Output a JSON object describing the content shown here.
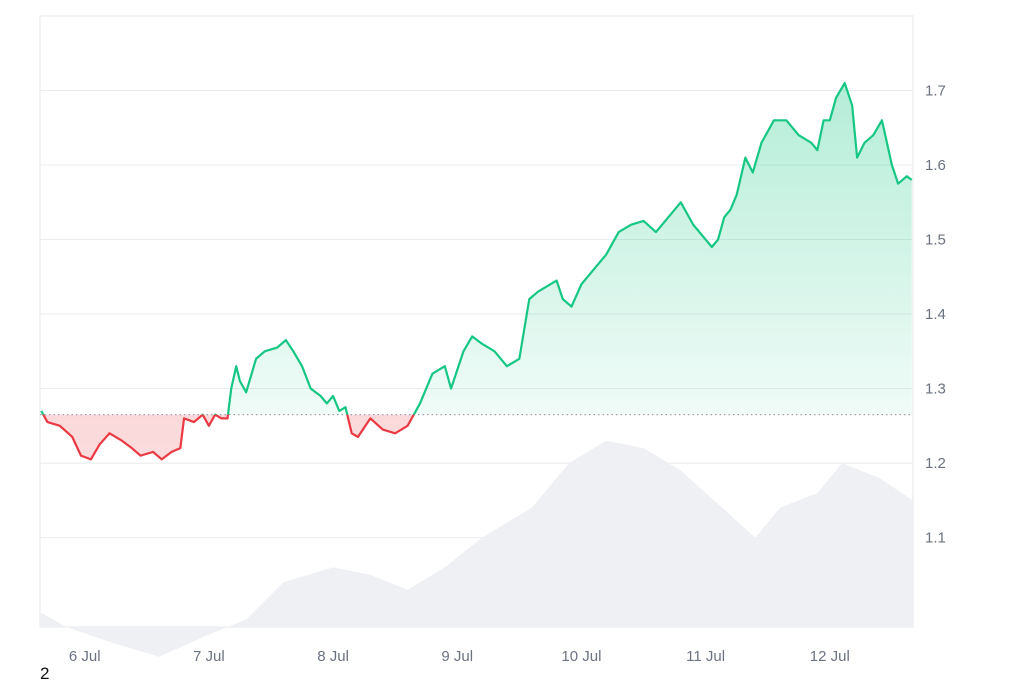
{
  "chart_data": {
    "type": "area",
    "baseline": 1.265,
    "ylim": [
      0.98,
      1.8
    ],
    "y_ticks": [
      "1.1",
      "1.2",
      "1.3",
      "1.4",
      "1.5",
      "1.6",
      "1.7"
    ],
    "x_ticks": [
      "6 Jul",
      "7 Jul",
      "8 Jul",
      "9 Jul",
      "10 Jul",
      "11 Jul",
      "12 Jul"
    ],
    "xlim": [
      5.64,
      12.67
    ],
    "grid": true,
    "colors": {
      "up": "#16c784",
      "down": "#ea3943",
      "volume": "#eef0f3"
    },
    "series": [
      {
        "values": [
          [
            5.65,
            1.27
          ],
          [
            5.7,
            1.255
          ],
          [
            5.8,
            1.25
          ],
          [
            5.9,
            1.235
          ],
          [
            5.97,
            1.21
          ],
          [
            6.05,
            1.205
          ],
          [
            6.12,
            1.225
          ],
          [
            6.2,
            1.24
          ],
          [
            6.3,
            1.23
          ],
          [
            6.38,
            1.22
          ],
          [
            6.45,
            1.21
          ],
          [
            6.55,
            1.215
          ],
          [
            6.62,
            1.205
          ],
          [
            6.7,
            1.215
          ],
          [
            6.77,
            1.22
          ],
          [
            6.8,
            1.26
          ],
          [
            6.88,
            1.255
          ],
          [
            6.95,
            1.265
          ],
          [
            7.0,
            1.25
          ],
          [
            7.05,
            1.265
          ],
          [
            7.1,
            1.26
          ],
          [
            7.15,
            1.26
          ],
          [
            7.18,
            1.3
          ],
          [
            7.22,
            1.33
          ],
          [
            7.25,
            1.31
          ],
          [
            7.3,
            1.295
          ],
          [
            7.38,
            1.34
          ],
          [
            7.45,
            1.35
          ],
          [
            7.55,
            1.355
          ],
          [
            7.62,
            1.365
          ],
          [
            7.68,
            1.35
          ],
          [
            7.75,
            1.33
          ],
          [
            7.82,
            1.3
          ],
          [
            7.9,
            1.29
          ],
          [
            7.95,
            1.28
          ],
          [
            8.0,
            1.29
          ],
          [
            8.05,
            1.27
          ],
          [
            8.1,
            1.275
          ],
          [
            8.15,
            1.24
          ],
          [
            8.2,
            1.235
          ],
          [
            8.3,
            1.26
          ],
          [
            8.4,
            1.245
          ],
          [
            8.5,
            1.24
          ],
          [
            8.6,
            1.25
          ],
          [
            8.65,
            1.265
          ],
          [
            8.7,
            1.28
          ],
          [
            8.8,
            1.32
          ],
          [
            8.9,
            1.33
          ],
          [
            8.95,
            1.3
          ],
          [
            9.05,
            1.35
          ],
          [
            9.12,
            1.37
          ],
          [
            9.2,
            1.36
          ],
          [
            9.3,
            1.35
          ],
          [
            9.4,
            1.33
          ],
          [
            9.5,
            1.34
          ],
          [
            9.58,
            1.42
          ],
          [
            9.65,
            1.43
          ],
          [
            9.8,
            1.445
          ],
          [
            9.85,
            1.42
          ],
          [
            9.92,
            1.41
          ],
          [
            10.0,
            1.44
          ],
          [
            10.1,
            1.46
          ],
          [
            10.2,
            1.48
          ],
          [
            10.3,
            1.51
          ],
          [
            10.4,
            1.52
          ],
          [
            10.5,
            1.525
          ],
          [
            10.6,
            1.51
          ],
          [
            10.7,
            1.53
          ],
          [
            10.8,
            1.55
          ],
          [
            10.9,
            1.52
          ],
          [
            11.0,
            1.5
          ],
          [
            11.05,
            1.49
          ],
          [
            11.1,
            1.5
          ],
          [
            11.15,
            1.53
          ],
          [
            11.2,
            1.54
          ],
          [
            11.25,
            1.56
          ],
          [
            11.32,
            1.61
          ],
          [
            11.38,
            1.59
          ],
          [
            11.45,
            1.63
          ],
          [
            11.55,
            1.66
          ],
          [
            11.65,
            1.66
          ],
          [
            11.75,
            1.64
          ],
          [
            11.85,
            1.63
          ],
          [
            11.9,
            1.62
          ],
          [
            11.95,
            1.66
          ],
          [
            12.0,
            1.66
          ],
          [
            12.05,
            1.69
          ],
          [
            12.12,
            1.71
          ],
          [
            12.18,
            1.68
          ],
          [
            12.22,
            1.61
          ],
          [
            12.28,
            1.63
          ],
          [
            12.35,
            1.64
          ],
          [
            12.42,
            1.66
          ],
          [
            12.5,
            1.6
          ],
          [
            12.55,
            1.575
          ],
          [
            12.62,
            1.585
          ],
          [
            12.66,
            1.58
          ]
        ]
      }
    ],
    "volume": [
      [
        5.64,
        1.0
      ],
      [
        5.85,
        0.98
      ],
      [
        6.2,
        0.96
      ],
      [
        6.6,
        0.94
      ],
      [
        7.0,
        0.97
      ],
      [
        7.3,
        0.99
      ],
      [
        7.6,
        1.04
      ],
      [
        8.0,
        1.06
      ],
      [
        8.3,
        1.05
      ],
      [
        8.6,
        1.03
      ],
      [
        8.9,
        1.06
      ],
      [
        9.2,
        1.1
      ],
      [
        9.6,
        1.14
      ],
      [
        9.9,
        1.2
      ],
      [
        10.2,
        1.23
      ],
      [
        10.5,
        1.22
      ],
      [
        10.8,
        1.19
      ],
      [
        11.0,
        1.16
      ],
      [
        11.2,
        1.13
      ],
      [
        11.4,
        1.1
      ],
      [
        11.6,
        1.14
      ],
      [
        11.9,
        1.16
      ],
      [
        12.1,
        1.2
      ],
      [
        12.4,
        1.18
      ],
      [
        12.67,
        1.15
      ]
    ]
  },
  "footer": {
    "text": "2"
  }
}
